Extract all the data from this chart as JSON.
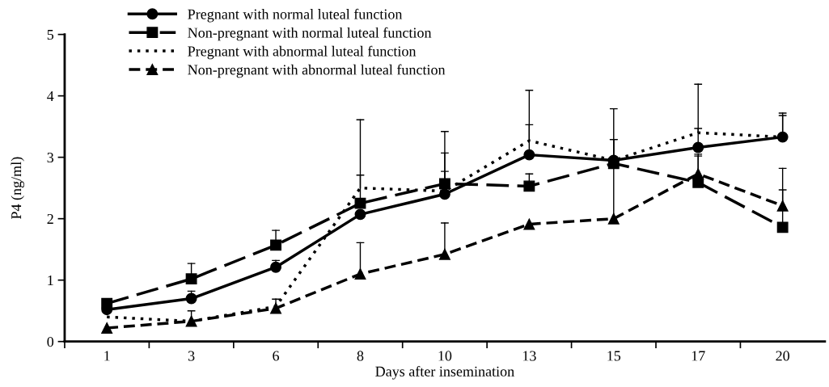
{
  "chart_data": {
    "type": "line",
    "xlabel": "Days after insemination",
    "ylabel": "P4 (ng/ml)",
    "categories": [
      "1",
      "3",
      "6",
      "8",
      "10",
      "13",
      "15",
      "17",
      "20"
    ],
    "ylim": [
      0,
      5
    ],
    "yticks": [
      0,
      1,
      2,
      3,
      4,
      5
    ],
    "grid": false,
    "legend": "top left",
    "series": [
      {
        "name": "Pregnant with normal luteal function",
        "color": "#000000",
        "marker": "circle",
        "line_style": "solid",
        "values": [
          0.52,
          0.7,
          1.21,
          2.07,
          2.4,
          3.04,
          2.95,
          3.16,
          3.33
        ],
        "errors": [
          null,
          [
            0.7,
            0.82
          ],
          [
            1.21,
            1.32
          ],
          null,
          [
            2.4,
            3.07
          ],
          [
            3.04,
            3.53
          ],
          [
            2.95,
            3.29
          ],
          [
            3.16,
            3.47
          ],
          [
            3.33,
            3.72
          ]
        ]
      },
      {
        "name": "Non-pregnant with normal luteal function",
        "color": "#000000",
        "marker": "square",
        "line_style": "longdash",
        "values": [
          0.62,
          1.02,
          1.57,
          2.25,
          2.57,
          2.53,
          2.9,
          2.59,
          1.86
        ],
        "errors": [
          null,
          [
            1.02,
            1.27
          ],
          [
            1.57,
            1.81
          ],
          [
            2.25,
            2.71
          ],
          [
            2.57,
            3.42
          ],
          [
            2.53,
            2.73
          ],
          [
            2.9,
            3.79
          ],
          [
            2.59,
            3.02
          ],
          [
            1.86,
            2.47
          ]
        ]
      },
      {
        "name": "Pregnant with abnormal luteal function",
        "color": "#000000",
        "marker": "none",
        "line_style": "dotted",
        "values": [
          0.4,
          0.33,
          0.57,
          2.5,
          2.45,
          3.27,
          2.95,
          3.4,
          3.33
        ],
        "errors": [
          null,
          null,
          null,
          [
            2.5,
            3.61
          ],
          [
            2.45,
            2.77
          ],
          [
            3.27,
            4.09
          ],
          null,
          [
            3.4,
            4.19
          ],
          [
            3.33,
            3.68
          ]
        ]
      },
      {
        "name": "Non-pregnant with abnormal luteal function",
        "color": "#000000",
        "marker": "triangle",
        "line_style": "dashed",
        "values": [
          0.22,
          0.33,
          0.54,
          1.1,
          1.42,
          1.91,
          2.0,
          2.73,
          2.21
        ],
        "errors": [
          null,
          [
            0.33,
            0.5
          ],
          [
            0.54,
            0.69
          ],
          [
            1.1,
            1.61
          ],
          [
            1.42,
            1.93
          ],
          null,
          [
            2.0,
            3.29
          ],
          [
            2.73,
            3.05
          ],
          [
            2.21,
            2.82
          ]
        ]
      }
    ]
  }
}
